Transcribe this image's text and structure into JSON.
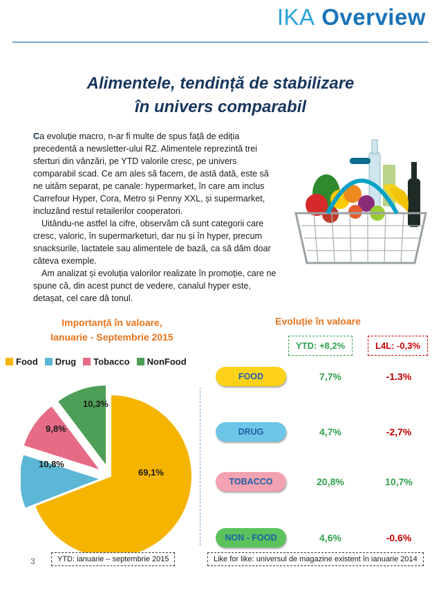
{
  "brand": {
    "part1": "IKA",
    "part2": "Overview"
  },
  "title": {
    "line1": "Alimentele, tendință de stabilizare",
    "line2": "în univers comparabil"
  },
  "intro": {
    "dropcap": "C",
    "p1_rest": "a evoluție macro, n-ar fi multe de spus față de ediția precedentă a newsletter-ului RZ. Alimentele reprezintă trei sferturi din vânzări, pe YTD valorile cresc, pe univers comparabil scad. Ce am ales să facem, de astă dată, este să ne uităm separat, pe canale: hypermarket, în care am inclus Carrefour Hyper, Cora, Metro și Penny XXL, și supermarket, incluzând restul retailerilor cooperatori.",
    "p2": "Uitându-ne astfel la cifre, observăm că sunt categorii care cresc, valoric, în supermarketuri, dar nu și în hyper, precum snacksurile, lactatele sau alimentele de bază, ca să dăm doar câteva exemple.",
    "p3": "Am analizat și evoluția valorilor realizate în promoție, care ne spune că, din acest punct de vedere, canalul hyper este, detașat, cel care dă tonul."
  },
  "left_heading": {
    "line1": "Importanță în valoare,",
    "line2": "Ianuarie - Septembrie 2015"
  },
  "right_heading": "Evoluție în valoare",
  "ytd_label": "YTD: +8,2%",
  "l4l_label": "L4L: -0,3%",
  "legend": [
    {
      "label": "Food",
      "color": "#f5b400"
    },
    {
      "label": "Drug",
      "color": "#5bb7d5"
    },
    {
      "label": "Tobacco",
      "color": "#e76b85"
    },
    {
      "label": "NonFood",
      "color": "#4d9e57"
    }
  ],
  "chart_data": {
    "type": "pie",
    "title": "Importanță în valoare, Ianuarie - Septembrie 2015",
    "categories": [
      "Food",
      "Drug",
      "Tobacco",
      "NonFood"
    ],
    "values": [
      69.1,
      10.8,
      9.8,
      10.3
    ],
    "labels": [
      "69,1%",
      "10,8%",
      "9,8%",
      "10,3%"
    ],
    "colors": [
      "#f5b400",
      "#5bb7d5",
      "#e76b85",
      "#4d9e57"
    ],
    "legend_position": "top"
  },
  "evolution": [
    {
      "category": "FOOD",
      "ytd": "7,7%",
      "l4l": "-1.3%",
      "l4l_color": "#c00000",
      "pill_color": "#ffd21a"
    },
    {
      "category": "DRUG",
      "ytd": "4,7%",
      "l4l": "-2,7%",
      "l4l_color": "#c00000",
      "pill_color": "#6ec6e6"
    },
    {
      "category": "TOBACCO",
      "ytd": "20,8%",
      "l4l": "10,7%",
      "l4l_color": "#2ea04b",
      "pill_color": "#f2a2b0"
    },
    {
      "category": "NON - FOOD",
      "ytd": "4,6%",
      "l4l": "-0.6%",
      "l4l_color": "#c00000",
      "pill_color": "#5cc35c"
    }
  ],
  "page_number": "3",
  "note_ytd": "YTD: ianuarie – septembrie 2015",
  "note_l4l": "Like for like: universul de magazine existent în ianuarie 2014"
}
